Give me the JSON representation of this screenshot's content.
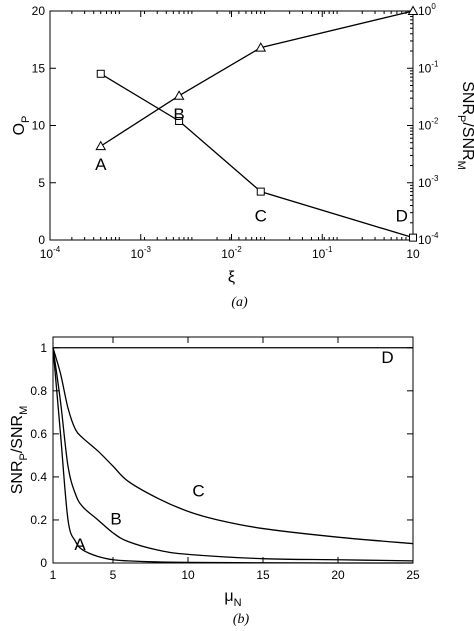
{
  "chart_data": [
    {
      "type": "line",
      "panel": "(a)",
      "caption": "(a)",
      "x_scale": "log",
      "xlim": [
        0.0001,
        10
      ],
      "xticks": [
        {
          "m": "10",
          "e": "-4"
        },
        {
          "m": "10",
          "e": "-3"
        },
        {
          "m": "10",
          "e": "-2"
        },
        {
          "m": "10",
          "e": "-1"
        },
        {
          "m": "10",
          "e": ""
        }
      ],
      "xlabel": "ξ",
      "ylabel_left": {
        "main": "O",
        "sub": "P"
      },
      "ylabel_right": {
        "a": "SNR",
        "sub_a": "P",
        "b": "/SNR",
        "sub_b": "M"
      },
      "ylim_left": [
        0,
        20
      ],
      "yticks_left": [
        "0",
        "5",
        "10",
        "15",
        "20"
      ],
      "ylim_right": [
        0.0001,
        1
      ],
      "yticks_right": [
        {
          "m": "10",
          "e": "-4"
        },
        {
          "m": "10",
          "e": "-3"
        },
        {
          "m": "10",
          "e": "-2"
        },
        {
          "m": "10",
          "e": "-1"
        },
        {
          "m": "10",
          "e": "0"
        }
      ],
      "series": [
        {
          "axis": "left",
          "marker": "triangle",
          "x": [
            0.0005,
            0.006,
            0.08,
            10
          ],
          "y": [
            8.2,
            12.6,
            16.8,
            20.0
          ]
        },
        {
          "axis": "right",
          "marker": "square",
          "x": [
            0.0005,
            0.006,
            0.08,
            10
          ],
          "y": [
            0.08,
            0.012,
            0.0007,
            0.00011
          ]
        }
      ],
      "annotations": [
        {
          "text": "A",
          "x": 0.0005,
          "y": 6.1
        },
        {
          "text": "B",
          "x": 0.006,
          "y": 10.5
        },
        {
          "text": "C",
          "x": 0.08,
          "y": 1.6
        },
        {
          "text": "D",
          "x": 7,
          "y": 1.6
        }
      ]
    },
    {
      "type": "line",
      "panel": "(b)",
      "caption": "(b)",
      "xlim": [
        1,
        25
      ],
      "xticks": [
        "1",
        "5",
        "10",
        "15",
        "20",
        "25"
      ],
      "ylim": [
        0,
        1.05
      ],
      "yticks": [
        "0",
        "0.2",
        "0.4",
        "0.6",
        "0.8",
        "1"
      ],
      "xlabel": {
        "main": "μ",
        "sub": "N"
      },
      "ylabel": {
        "a": "SNR",
        "sub_a": "P",
        "b": "/SNR",
        "sub_b": "M"
      },
      "series": [
        {
          "label": "A",
          "x": [
            1,
            1.5,
            2,
            2.5,
            3,
            4,
            5,
            6,
            8,
            10,
            15,
            20,
            25
          ],
          "y": [
            1,
            0.6,
            0.2,
            0.1,
            0.06,
            0.03,
            0.015,
            0.01,
            0.005,
            0.003,
            0.001,
            0,
            0
          ]
        },
        {
          "label": "B",
          "x": [
            1,
            1.5,
            2,
            2.5,
            3,
            4,
            5,
            6,
            8,
            10,
            15,
            20,
            25
          ],
          "y": [
            1,
            0.75,
            0.45,
            0.32,
            0.26,
            0.2,
            0.14,
            0.1,
            0.06,
            0.04,
            0.02,
            0.015,
            0.01
          ]
        },
        {
          "label": "C",
          "x": [
            1,
            1.5,
            2,
            2.5,
            3,
            4,
            5,
            6,
            8,
            10,
            12,
            15,
            20,
            25
          ],
          "y": [
            1,
            0.88,
            0.72,
            0.62,
            0.58,
            0.52,
            0.45,
            0.38,
            0.3,
            0.24,
            0.2,
            0.16,
            0.12,
            0.09
          ]
        },
        {
          "label": "D",
          "x": [
            1,
            25
          ],
          "y": [
            1,
            1
          ]
        }
      ],
      "annotations": [
        {
          "text": "A",
          "x": 2.8,
          "y": 0.06
        },
        {
          "text": "B",
          "x": 5.2,
          "y": 0.18
        },
        {
          "text": "C",
          "x": 10.7,
          "y": 0.31
        },
        {
          "text": "D",
          "x": 23.3,
          "y": 0.93
        }
      ]
    }
  ]
}
